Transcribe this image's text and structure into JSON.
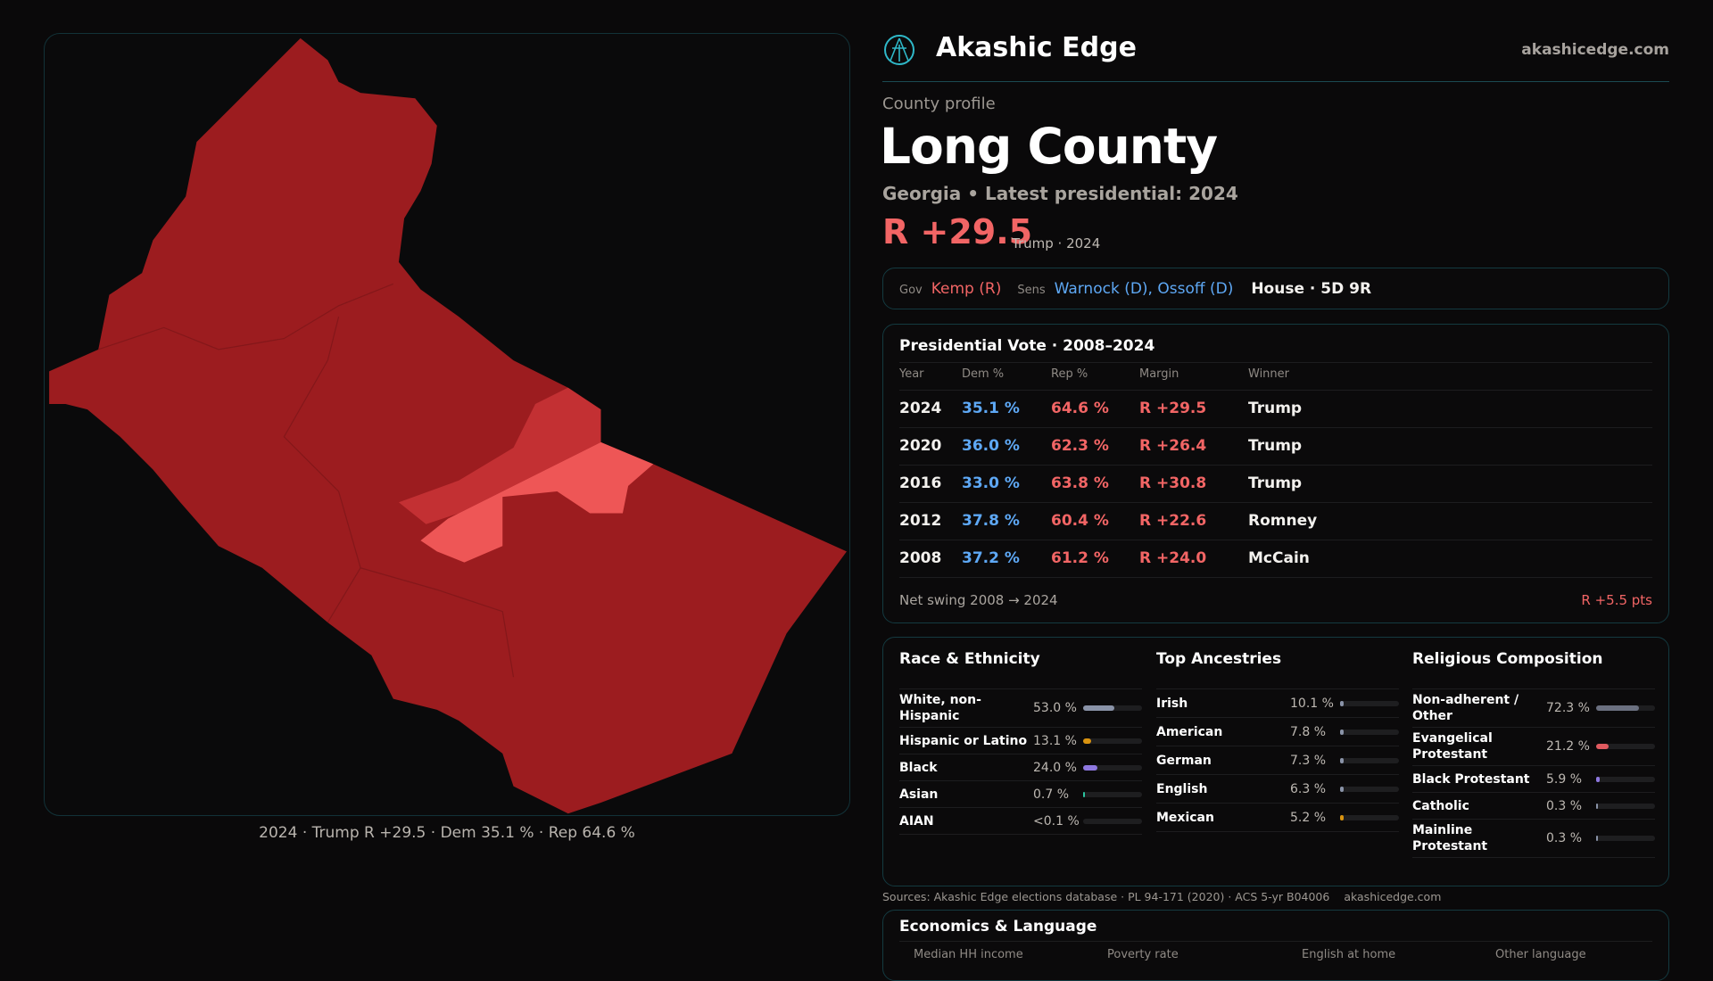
{
  "brand": {
    "name": "Akashic Edge",
    "site": "akashicedge.com"
  },
  "profile": {
    "kicker": "County profile",
    "title": "Long County",
    "subtitle": "Georgia • Latest presidential: 2024",
    "margin": "R +29.5",
    "margin_note": "Trump · 2024"
  },
  "officials": {
    "gov_label": "Gov",
    "gov": "Kemp (R)",
    "sens_label": "Sens",
    "sens": "Warnock (D), Ossoff (D)",
    "house": "House · 5D 9R"
  },
  "map": {
    "caption": "2024 · Trump R +29.5 · Dem 35.1 % · Rep 64.6 %",
    "colors": {
      "base": "#9c1c1f",
      "mid": "#c33033",
      "light": "#ee5656"
    }
  },
  "presidential": {
    "title": "Presidential Vote · 2008–2024",
    "headers": [
      "Year",
      "Dem %",
      "Rep %",
      "Margin",
      "Winner"
    ],
    "rows": [
      [
        "2024",
        "35.1 %",
        "64.6 %",
        "R +29.5",
        "Trump"
      ],
      [
        "2020",
        "36.0 %",
        "62.3 %",
        "R +26.4",
        "Trump"
      ],
      [
        "2016",
        "33.0 %",
        "63.8 %",
        "R +30.8",
        "Trump"
      ],
      [
        "2012",
        "37.8 %",
        "60.4 %",
        "R +22.6",
        "Romney"
      ],
      [
        "2008",
        "37.2 %",
        "61.2 %",
        "R +24.0",
        "McCain"
      ]
    ],
    "swing_label": "Net swing 2008 → 2024",
    "swing": "R +5.5 pts"
  },
  "race": {
    "title": "Race & Ethnicity",
    "items": [
      {
        "name": "White, non-Hispanic",
        "value": "53.0 %",
        "pct": 53.0,
        "color": "#8a93a8"
      },
      {
        "name": "Hispanic or Latino",
        "value": "13.1 %",
        "pct": 13.1,
        "color": "#d99310"
      },
      {
        "name": "Black",
        "value": "24.0 %",
        "pct": 24.0,
        "color": "#8e78e0"
      },
      {
        "name": "Asian",
        "value": "0.7 %",
        "pct": 0.7,
        "color": "#2bc4a0"
      },
      {
        "name": "AIAN",
        "value": "<0.1 %",
        "pct": 0,
        "color": "#8a93a8"
      }
    ]
  },
  "ancestry": {
    "title": "Top Ancestries",
    "items": [
      {
        "name": "Irish",
        "value": "10.1 %",
        "pct": 10.1,
        "color": "#8a93a8"
      },
      {
        "name": "American",
        "value": "7.8 %",
        "pct": 7.8,
        "color": "#8a93a8"
      },
      {
        "name": "German",
        "value": "7.3 %",
        "pct": 7.3,
        "color": "#8a93a8"
      },
      {
        "name": "English",
        "value": "6.3 %",
        "pct": 6.3,
        "color": "#8a93a8"
      },
      {
        "name": "Mexican",
        "value": "5.2 %",
        "pct": 5.2,
        "color": "#d99310"
      }
    ]
  },
  "religion": {
    "title": "Religious Composition",
    "items": [
      {
        "name": "Non-adherent / Other",
        "value": "72.3 %",
        "pct": 72.3,
        "color": "#6b7080"
      },
      {
        "name": "Evangelical Protestant",
        "value": "21.2 %",
        "pct": 21.2,
        "color": "#e05a5f"
      },
      {
        "name": "Black Protestant",
        "value": "5.9 %",
        "pct": 5.9,
        "color": "#8e78e0"
      },
      {
        "name": "Catholic",
        "value": "0.3 %",
        "pct": 0.3,
        "color": "#8a93a8"
      },
      {
        "name": "Mainline Protestant",
        "value": "0.3 %",
        "pct": 0.3,
        "color": "#8a93a8"
      }
    ]
  },
  "sources": {
    "line1": "Sources: Akashic Edge elections database · PL 94-171 (2020) · ACS 5-yr B04006",
    "line2": "akashicedge.com"
  },
  "economics": {
    "title": "Economics & Language",
    "headers": [
      "Median HH income",
      "Poverty rate",
      "English at home",
      "Other language"
    ]
  }
}
